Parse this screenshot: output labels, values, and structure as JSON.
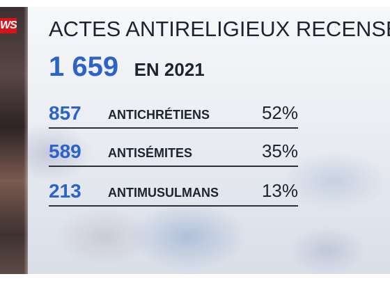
{
  "logo": {
    "text": "WS",
    "color": "#d7141a"
  },
  "title": "ACTES ANTIRELIGIEUX RECENSÉS",
  "total": {
    "value": "1 659",
    "label": "EN 2021"
  },
  "stats": [
    {
      "count": "857",
      "label": "ANTICHRÉTIENS",
      "percent": "52%"
    },
    {
      "count": "589",
      "label": "ANTISÉMITES",
      "percent": "35%"
    },
    {
      "count": "213",
      "label": "ANTIMUSULMANS",
      "percent": "13%"
    }
  ],
  "colors": {
    "accent": "#2b63c9",
    "text": "#1c2430",
    "brand": "#d7141a"
  }
}
